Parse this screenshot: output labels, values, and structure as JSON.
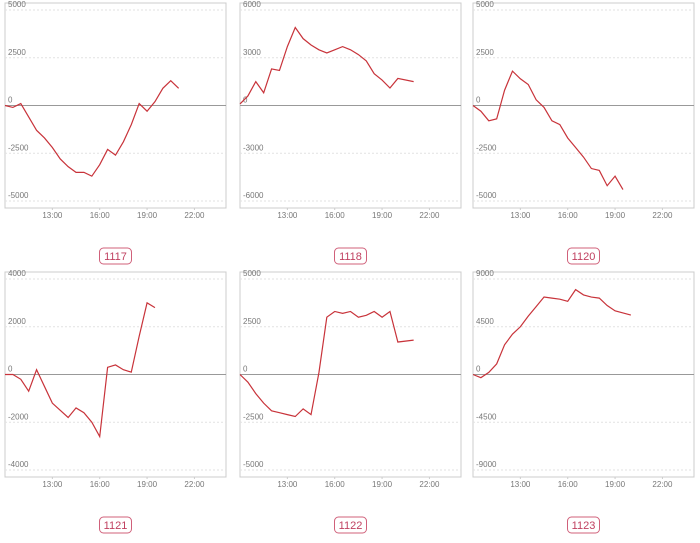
{
  "chart_data": [
    {
      "type": "line",
      "title": "1117",
      "color": "#c8333a",
      "x": [
        10,
        10.5,
        11,
        11.5,
        12,
        12.5,
        13,
        13.5,
        14,
        14.5,
        15,
        15.5,
        16,
        16.5,
        17,
        17.5,
        18,
        18.5,
        19,
        19.5,
        20,
        20.5,
        21
      ],
      "values": [
        0,
        -100,
        100,
        -600,
        -1300,
        -1700,
        -2200,
        -2800,
        -3200,
        -3500,
        -3500,
        -3700,
        -3100,
        -2300,
        -2600,
        -1900,
        -1000,
        100,
        -300,
        200,
        900,
        1300,
        900
      ],
      "xlim": [
        10,
        24
      ],
      "xticks": [
        {
          "value": 13,
          "label": "13:00"
        },
        {
          "value": 16,
          "label": "16:00"
        },
        {
          "value": 19,
          "label": "19:00"
        },
        {
          "value": 22,
          "label": "22:00"
        }
      ],
      "ylim": [
        -5000,
        5000
      ],
      "yticks": [
        5000,
        2500,
        0,
        -2500,
        -5000
      ]
    },
    {
      "type": "line",
      "title": "1118",
      "color": "#c8333a",
      "x": [
        10,
        10.5,
        11,
        11.5,
        12,
        12.5,
        13,
        13.5,
        14,
        14.5,
        15,
        15.5,
        16,
        16.5,
        17,
        17.5,
        18,
        18.5,
        19,
        19.5,
        20,
        21
      ],
      "values": [
        100,
        600,
        1500,
        800,
        2300,
        2200,
        3700,
        4900,
        4200,
        3800,
        3500,
        3300,
        3500,
        3700,
        3500,
        3200,
        2800,
        2000,
        1600,
        1100,
        1700,
        1500
      ],
      "xlim": [
        10,
        24
      ],
      "xticks": [
        {
          "value": 13,
          "label": "13:00"
        },
        {
          "value": 16,
          "label": "16:00"
        },
        {
          "value": 19,
          "label": "19:00"
        },
        {
          "value": 22,
          "label": "22:00"
        }
      ],
      "ylim": [
        -6000,
        6000
      ],
      "yticks": [
        6000,
        3000,
        0,
        -3000,
        -6000
      ]
    },
    {
      "type": "line",
      "title": "1120",
      "color": "#c8333a",
      "x": [
        10,
        10.5,
        11,
        11.5,
        12,
        12.5,
        13,
        13.5,
        14,
        14.5,
        15,
        15.5,
        16,
        16.5,
        17,
        17.5,
        18,
        18.5,
        19,
        19.5
      ],
      "values": [
        0,
        -300,
        -800,
        -700,
        800,
        1800,
        1400,
        1100,
        300,
        -100,
        -800,
        -1000,
        -1700,
        -2200,
        -2700,
        -3300,
        -3400,
        -4200,
        -3700,
        -4400
      ],
      "xlim": [
        10,
        24
      ],
      "xticks": [
        {
          "value": 13,
          "label": "13:00"
        },
        {
          "value": 16,
          "label": "16:00"
        },
        {
          "value": 19,
          "label": "19:00"
        },
        {
          "value": 22,
          "label": "22:00"
        }
      ],
      "ylim": [
        -5000,
        5000
      ],
      "yticks": [
        5000,
        2500,
        0,
        -2500,
        -5000
      ]
    },
    {
      "type": "line",
      "title": "1121",
      "color": "#c8333a",
      "x": [
        10,
        10.5,
        11,
        11.5,
        12,
        12.5,
        13,
        13.5,
        14,
        14.5,
        15,
        15.5,
        16,
        16.5,
        17,
        17.5,
        18,
        18.5,
        19,
        19.5
      ],
      "values": [
        0,
        0,
        -200,
        -700,
        200,
        -500,
        -1200,
        -1500,
        -1800,
        -1400,
        -1600,
        -2000,
        -2600,
        300,
        400,
        200,
        100,
        1600,
        3000,
        2800
      ],
      "xlim": [
        10,
        24
      ],
      "xticks": [
        {
          "value": 13,
          "label": "13:00"
        },
        {
          "value": 16,
          "label": "16:00"
        },
        {
          "value": 19,
          "label": "19:00"
        },
        {
          "value": 22,
          "label": "22:00"
        }
      ],
      "ylim": [
        -4000,
        4000
      ],
      "yticks": [
        4000,
        2000,
        0,
        -2000,
        -4000
      ]
    },
    {
      "type": "line",
      "title": "1122",
      "color": "#c8333a",
      "x": [
        10,
        10.5,
        11,
        11.5,
        12,
        12.5,
        13,
        13.5,
        14,
        14.5,
        15,
        15.5,
        16,
        16.5,
        17,
        17.5,
        18,
        18.5,
        19,
        19.5,
        20,
        21
      ],
      "values": [
        0,
        -400,
        -1000,
        -1500,
        -1900,
        -2000,
        -2100,
        -2200,
        -1800,
        -2100,
        100,
        3000,
        3300,
        3200,
        3300,
        3000,
        3100,
        3300,
        3000,
        3300,
        1700,
        1800
      ],
      "xlim": [
        10,
        24
      ],
      "xticks": [
        {
          "value": 13,
          "label": "13:00"
        },
        {
          "value": 16,
          "label": "16:00"
        },
        {
          "value": 19,
          "label": "19:00"
        },
        {
          "value": 22,
          "label": "22:00"
        }
      ],
      "ylim": [
        -5000,
        5000
      ],
      "yticks": [
        5000,
        2500,
        0,
        -2500,
        -5000
      ]
    },
    {
      "type": "line",
      "title": "1123",
      "color": "#c8333a",
      "x": [
        10,
        10.5,
        11,
        11.5,
        12,
        12.5,
        13,
        13.5,
        14,
        14.5,
        15,
        15.5,
        16,
        16.5,
        17,
        17.5,
        18,
        18.5,
        19,
        19.5,
        20
      ],
      "values": [
        0,
        -300,
        200,
        1000,
        2800,
        3800,
        4500,
        5500,
        6400,
        7300,
        7200,
        7100,
        6900,
        8000,
        7500,
        7300,
        7200,
        6500,
        6000,
        5800,
        5600
      ],
      "xlim": [
        10,
        24
      ],
      "xticks": [
        {
          "value": 13,
          "label": "13:00"
        },
        {
          "value": 16,
          "label": "16:00"
        },
        {
          "value": 19,
          "label": "19:00"
        },
        {
          "value": 22,
          "label": "22:00"
        }
      ],
      "ylim": [
        -9000,
        9000
      ],
      "yticks": [
        9000,
        4500,
        0,
        -4500,
        -9000
      ]
    }
  ]
}
